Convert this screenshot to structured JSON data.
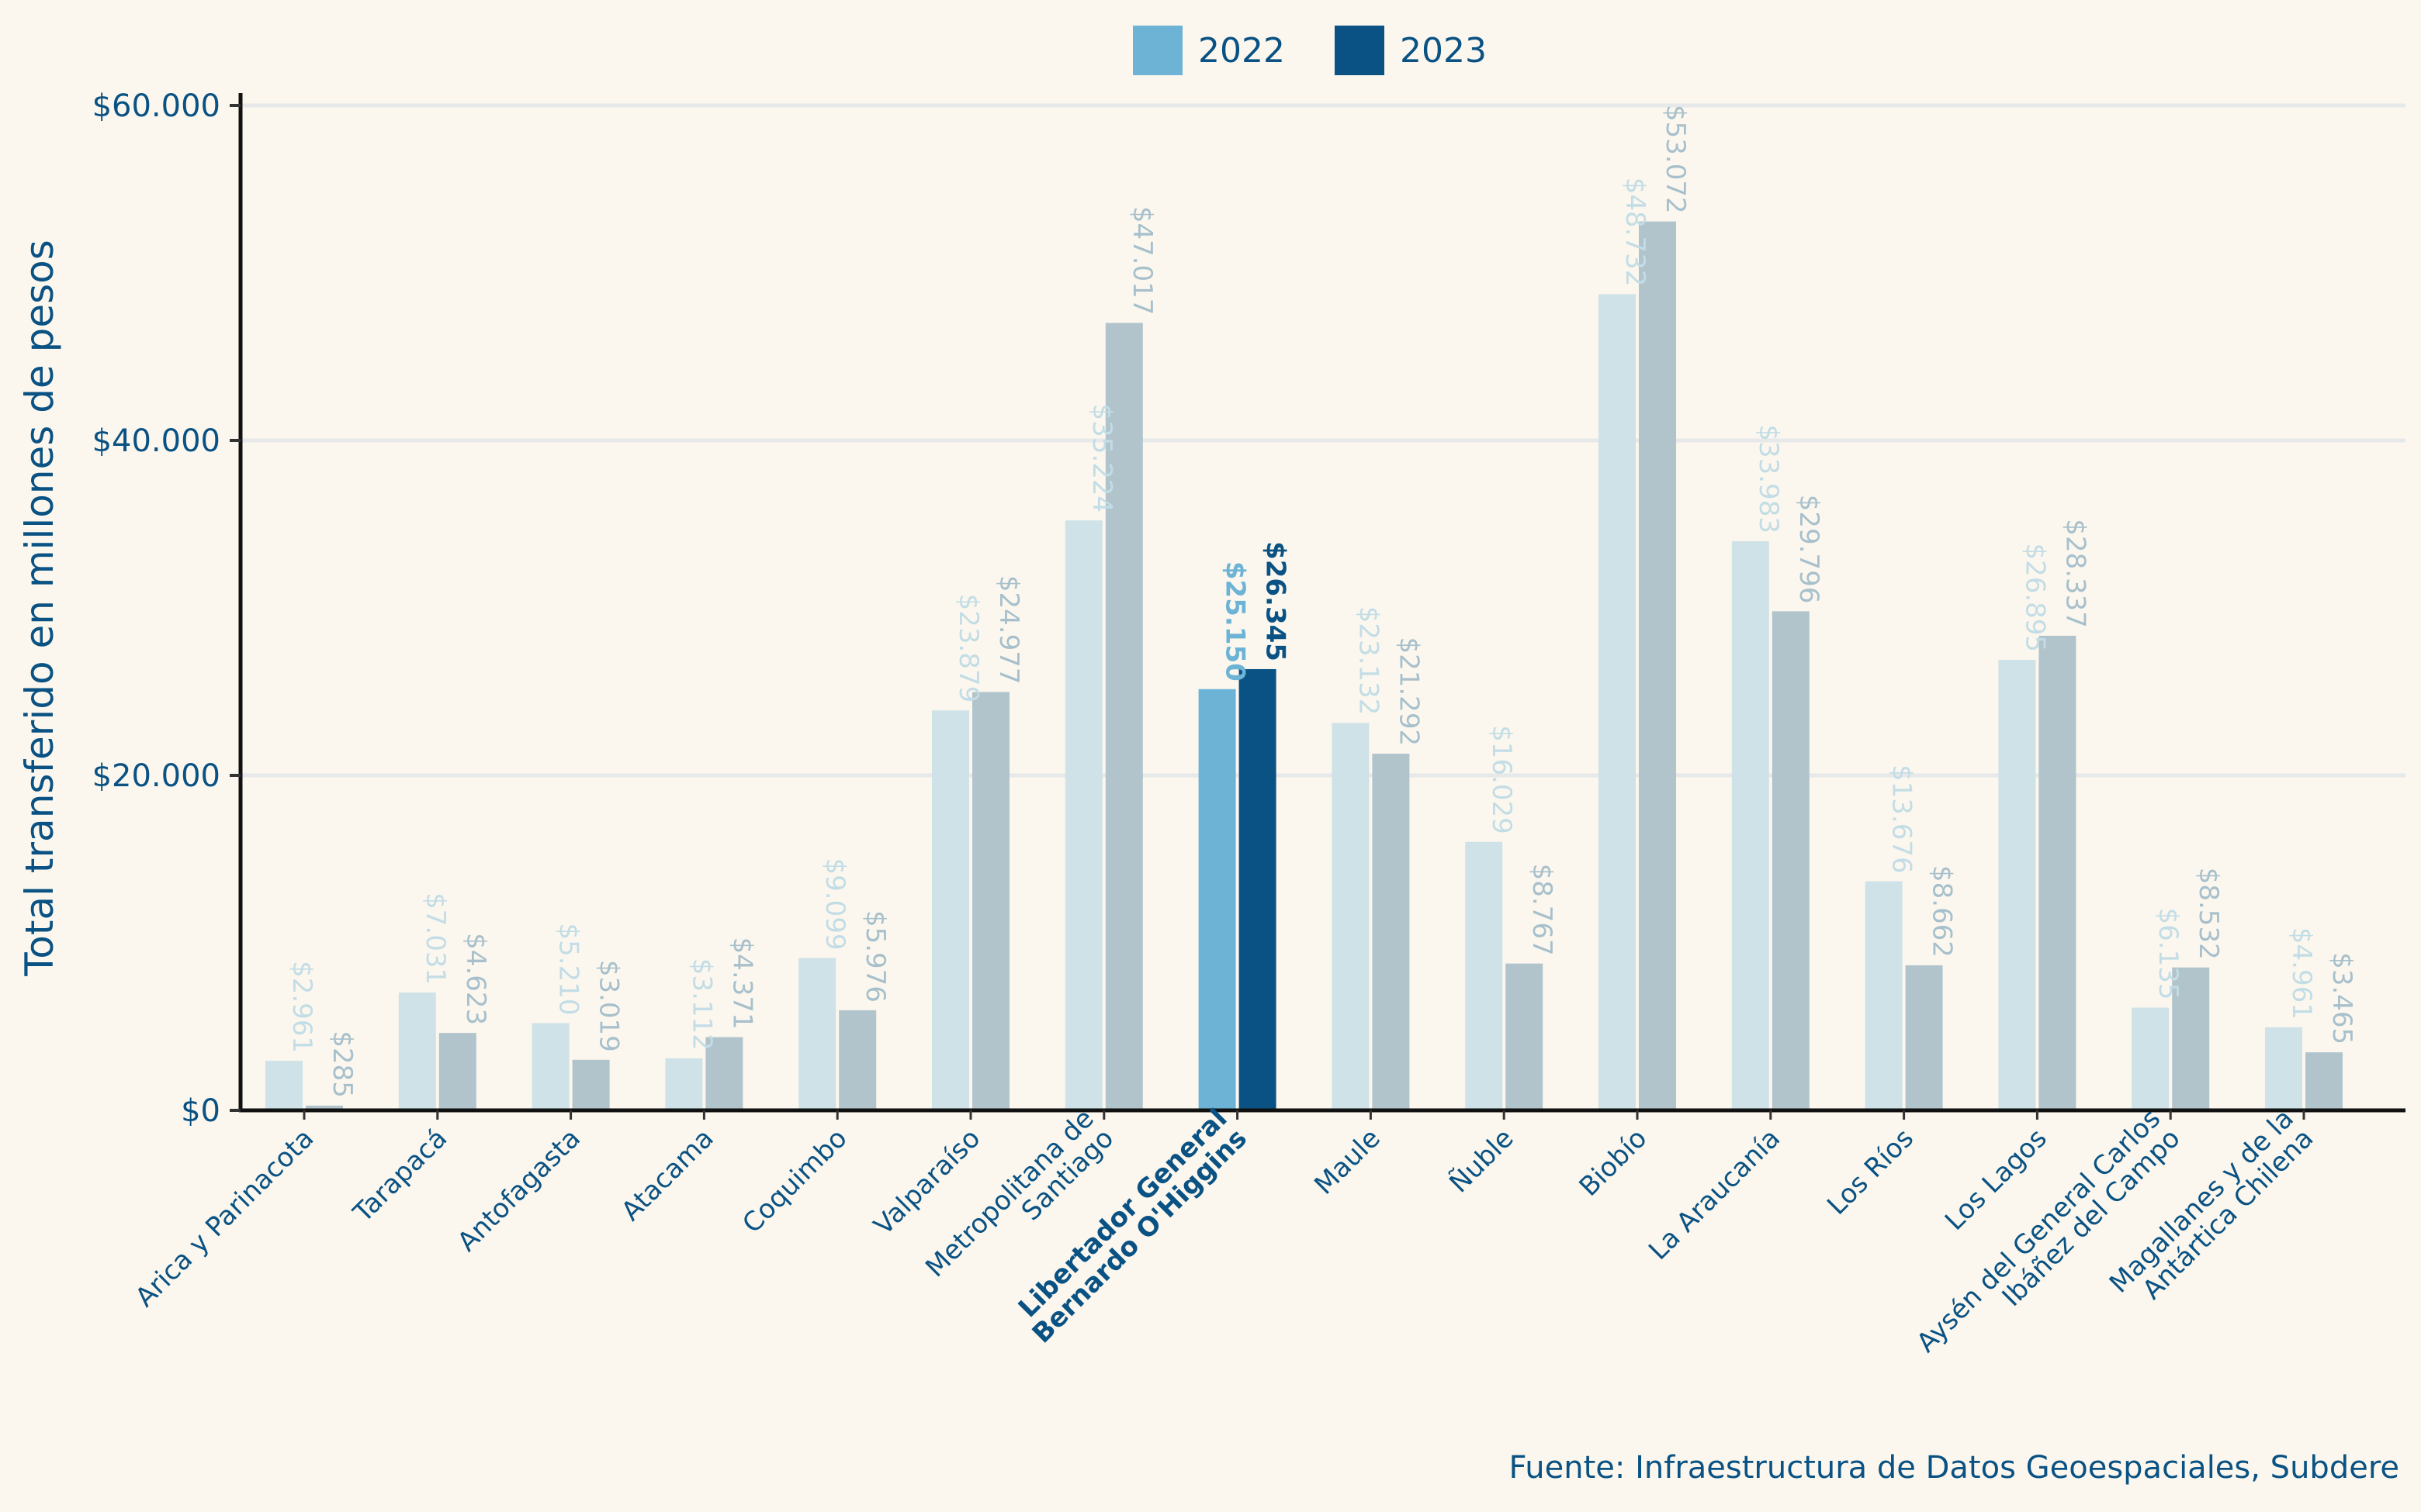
{
  "chart_data": {
    "type": "bar",
    "title": "",
    "xlabel": "",
    "ylabel": "Total transferido en millones de pesos",
    "ylim": [
      0,
      60000
    ],
    "yticks": [
      0,
      20000,
      40000,
      60000
    ],
    "ytick_labels": [
      "$0",
      "$20.000",
      "$40.000",
      "$60.000"
    ],
    "grid": "horizontal",
    "legend_position": "top-center",
    "highlight_category": "Libertador General Bernardo O'Higgins",
    "categories": [
      "Arica y Parinacota",
      "Tarapacá",
      "Antofagasta",
      "Atacama",
      "Coquimbo",
      "Valparaíso",
      "Metropolitana de Santiago",
      "Libertador General Bernardo O'Higgins",
      "Maule",
      "Ñuble",
      "Biobío",
      "La Araucanía",
      "Los Ríos",
      "Los Lagos",
      "Aysén del General Carlos Ibáñez del Campo",
      "Magallanes y de la Antártica Chilena"
    ],
    "category_label_lines": [
      [
        "Arica y Parinacota"
      ],
      [
        "Tarapacá"
      ],
      [
        "Antofagasta"
      ],
      [
        "Atacama"
      ],
      [
        "Coquimbo"
      ],
      [
        "Valparaíso"
      ],
      [
        "Metropolitana de",
        "Santiago"
      ],
      [
        "Libertador General",
        "Bernardo O'Higgins"
      ],
      [
        "Maule"
      ],
      [
        "Ñuble"
      ],
      [
        "Biobío"
      ],
      [
        "La Araucanía"
      ],
      [
        "Los Ríos"
      ],
      [
        "Los Lagos"
      ],
      [
        "Aysén del General Carlos",
        "Ibáñez del Campo"
      ],
      [
        "Magallanes y de la",
        "Antártica Chilena"
      ]
    ],
    "series": [
      {
        "name": "2022",
        "color": "#6db3d6",
        "muted_color": "#cfe2e7",
        "label_muted_color": "#c3dde6",
        "values": [
          2961,
          7031,
          5210,
          3112,
          9099,
          23879,
          35224,
          25150,
          23132,
          16029,
          48732,
          33983,
          13676,
          26895,
          6135,
          4961
        ],
        "labels": [
          "$2.961",
          "$7.031",
          "$5.210",
          "$3.112",
          "$9.099",
          "$23.879",
          "$35.224",
          "$25.150",
          "$23.132",
          "$16.029",
          "$48.732",
          "$33.983",
          "$13.676",
          "$26.895",
          "$6.135",
          "$4.961"
        ]
      },
      {
        "name": "2023",
        "color": "#0a5283",
        "muted_color": "#b1c4cc",
        "label_muted_color": "#a7c0cc",
        "values": [
          285,
          4623,
          3019,
          4371,
          5976,
          24977,
          47017,
          26345,
          21292,
          8767,
          53072,
          29796,
          8662,
          28337,
          8532,
          3465
        ],
        "labels": [
          "$285",
          "$4.623",
          "$3.019",
          "$4.371",
          "$5.976",
          "$24.977",
          "$47.017",
          "$26.345",
          "$21.292",
          "$8.767",
          "$53.072",
          "$29.796",
          "$8.662",
          "$28.337",
          "$8.532",
          "$3.465"
        ]
      }
    ],
    "source": "Fuente: Infraestructura de Datos Geoespaciales, Subdere"
  },
  "colors": {
    "background": "#fbf7ee",
    "text": "#0a5283",
    "grid": "#e6e8ea",
    "axis": "#111111"
  }
}
